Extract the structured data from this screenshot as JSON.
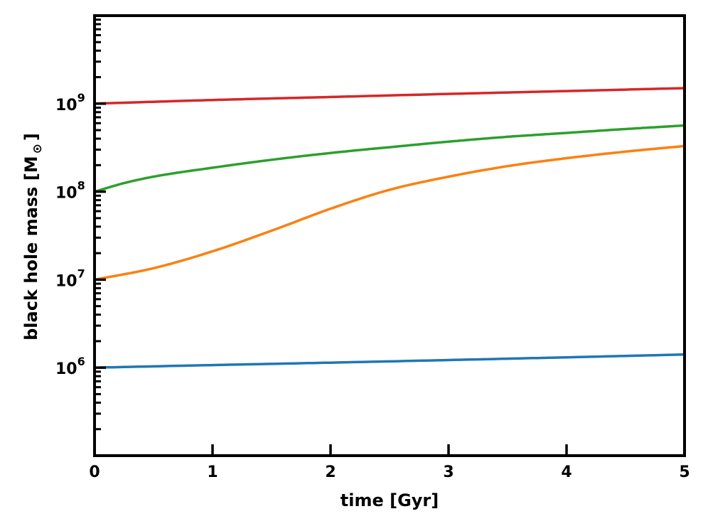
{
  "chart_data": {
    "type": "line",
    "xlabel": "time [Gyr]",
    "ylabel_main": "black hole mass [M",
    "ylabel_sub": "⊙",
    "ylabel_close": "]",
    "xlim": [
      0,
      5
    ],
    "ylim": [
      100000,
      10000000000
    ],
    "yscale": "log",
    "grid": false,
    "x_ticks": [
      0,
      1,
      2,
      3,
      4,
      5
    ],
    "x_tick_labels": [
      "0",
      "1",
      "2",
      "3",
      "4",
      "5"
    ],
    "y_tick_labels": [
      {
        "base": "10",
        "exp": "6",
        "value": 1000000
      },
      {
        "base": "10",
        "exp": "7",
        "value": 10000000
      },
      {
        "base": "10",
        "exp": "8",
        "value": 100000000
      },
      {
        "base": "10",
        "exp": "9",
        "value": 1000000000
      }
    ],
    "series": [
      {
        "color": "#1f77b4",
        "x": [
          0,
          1,
          2,
          3,
          4,
          5
        ],
        "y": [
          1000000,
          1070000,
          1140000,
          1220000,
          1310000,
          1410000
        ]
      },
      {
        "color": "#ff7f0e",
        "x": [
          0,
          0.5,
          1,
          1.5,
          2,
          2.5,
          3,
          3.5,
          4,
          4.5,
          5
        ],
        "y": [
          10000000,
          13500000,
          21000000,
          36000000,
          64000000,
          105000000,
          148000000,
          195000000,
          240000000,
          285000000,
          330000000
        ]
      },
      {
        "color": "#2ca02c",
        "x": [
          0,
          0.25,
          0.5,
          1,
          1.5,
          2,
          2.5,
          3,
          3.5,
          4,
          4.5,
          5
        ],
        "y": [
          100000000,
          125000000,
          148000000,
          187000000,
          230000000,
          275000000,
          320000000,
          370000000,
          420000000,
          465000000,
          515000000,
          565000000
        ]
      },
      {
        "color": "#d62728",
        "x": [
          0,
          1,
          2,
          3,
          4,
          5
        ],
        "y": [
          1000000000,
          1100000000,
          1190000000,
          1290000000,
          1390000000,
          1500000000
        ]
      }
    ]
  }
}
